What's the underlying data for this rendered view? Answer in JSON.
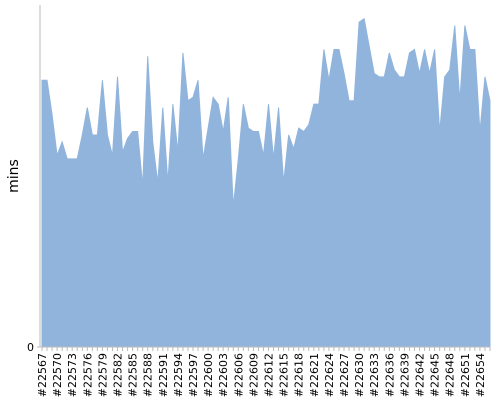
{
  "chart_data": {
    "type": "area",
    "y_label": "mins",
    "categories": [
      "#22567",
      null,
      null,
      "#22570",
      null,
      null,
      "#22573",
      null,
      null,
      "#22576",
      null,
      null,
      "#22579",
      null,
      null,
      "#22582",
      null,
      null,
      "#22585",
      null,
      null,
      "#22588",
      null,
      null,
      "#22591",
      null,
      null,
      "#22594",
      null,
      null,
      "#22597",
      null,
      null,
      "#22600",
      null,
      null,
      "#22603",
      null,
      null,
      "#22606",
      null,
      null,
      "#22609",
      null,
      null,
      "#22612",
      null,
      null,
      "#22615",
      null,
      null,
      "#22618",
      null,
      null,
      "#22621",
      null,
      null,
      "#22624",
      null,
      null,
      "#22627",
      null,
      null,
      "#22630",
      null,
      null,
      "#22633",
      null,
      null,
      "#22636",
      null,
      null,
      "#22639",
      null,
      null,
      "#22642",
      null,
      null,
      "#22645",
      null,
      null,
      "#22648",
      null,
      null,
      "#22651",
      null,
      null,
      "#22654",
      null,
      null
    ],
    "values": [
      78,
      78,
      68,
      56,
      60,
      55,
      55,
      55,
      62,
      70,
      62,
      62,
      78,
      62,
      56,
      79,
      57,
      61,
      63,
      63,
      47,
      85,
      60,
      48,
      70,
      48,
      71,
      57,
      86,
      72,
      73,
      78,
      55,
      64,
      73,
      71,
      63,
      73,
      41,
      55,
      71,
      64,
      63,
      63,
      56,
      71,
      55,
      70,
      48,
      62,
      58,
      64,
      63,
      65,
      71,
      71,
      87,
      78,
      87,
      87,
      80,
      72,
      72,
      95,
      96,
      88,
      80,
      79,
      79,
      86,
      81,
      79,
      79,
      86,
      87,
      80,
      87,
      80,
      87,
      63,
      79,
      81,
      94,
      72,
      94,
      87,
      87,
      63,
      79,
      72
    ],
    "color": "#90b4dc",
    "ylim": [
      0,
      100
    ],
    "yticks": [
      0
    ]
  }
}
